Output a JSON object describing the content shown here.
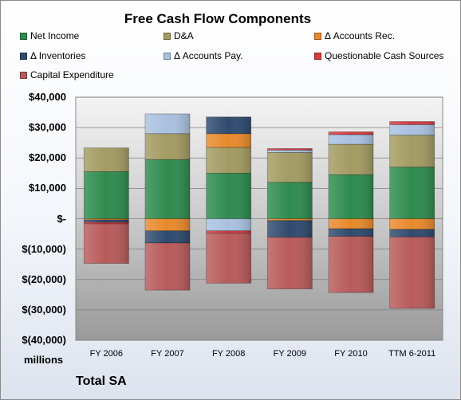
{
  "chart_data": {
    "type": "bar",
    "stacked": true,
    "title": "Free Cash Flow Components",
    "units_label": "millions",
    "footer": "Total SA",
    "categories": [
      "FY 2006",
      "FY 2007",
      "FY 2008",
      "FY 2009",
      "FY 2010",
      "TTM 6-2011"
    ],
    "ylim": [
      -40000,
      40000
    ],
    "yticks": [
      40000,
      30000,
      20000,
      10000,
      0,
      -10000,
      -20000,
      -30000,
      -40000
    ],
    "ytick_labels": [
      "$40,000",
      "$30,000",
      "$20,000",
      "$10,000",
      "$-",
      "$(10,000)",
      "$(20,000)",
      "$(30,000)",
      "$(40,000)"
    ],
    "grid": true,
    "legend_position": "top",
    "series": [
      {
        "name": "Net Income",
        "color": "#2e8b4e",
        "values": [
          15500,
          19500,
          15000,
          12000,
          14500,
          17000
        ]
      },
      {
        "name": "D&A",
        "color": "#a39b62",
        "values": [
          7800,
          8500,
          8500,
          9800,
          10000,
          10500
        ]
      },
      {
        "name": "Δ Accounts Rec.",
        "color": "#e8892b",
        "values": [
          -400,
          -4000,
          4500,
          -600,
          -3300,
          -3500
        ]
      },
      {
        "name": "Δ Inventories",
        "color": "#2f4a6e",
        "values": [
          -800,
          -4000,
          5500,
          -5500,
          -2500,
          -2500
        ]
      },
      {
        "name": "Δ Accounts Pay.",
        "color": "#a9c1df",
        "values": [
          0,
          6500,
          -4000,
          800,
          3200,
          3500
        ]
      },
      {
        "name": "Questionable Cash Sources",
        "color": "#d83a3f",
        "values": [
          -500,
          0,
          -700,
          500,
          900,
          1000
        ]
      },
      {
        "name": "Capital Expenditure",
        "color": "#b85a5a",
        "values": [
          -13000,
          -15500,
          -16500,
          -17000,
          -18500,
          -23500
        ]
      }
    ]
  }
}
